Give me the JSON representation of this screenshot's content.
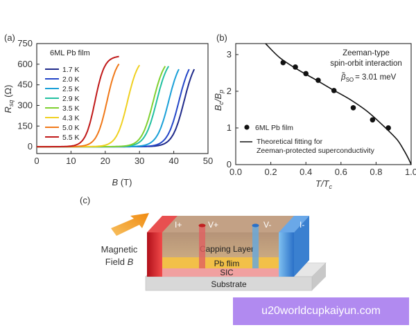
{
  "chart_data": [
    {
      "panel": "(a)",
      "type": "line",
      "title": "6ML Pb film",
      "xlabel": "B (T)",
      "ylabel": "R_sq (Ω)",
      "xlim": [
        0,
        50
      ],
      "ylim": [
        0,
        750
      ],
      "xticks": [
        "0",
        "10",
        "20",
        "30",
        "40",
        "50"
      ],
      "yticks": [
        "0",
        "150",
        "300",
        "450",
        "600",
        "750"
      ],
      "x_tick_values": [
        0,
        10,
        20,
        30,
        40,
        50
      ],
      "y_tick_values": [
        0,
        150,
        300,
        450,
        600,
        750
      ],
      "r_max": 660,
      "series": [
        {
          "name": "1.7 K",
          "color": "#1f2a8a",
          "midpoint_T": 43.0,
          "width_T": 1.7,
          "end_T": 46.0
        },
        {
          "name": "2.0 K",
          "color": "#2346c8",
          "midpoint_T": 41.5,
          "width_T": 1.7,
          "end_T": 44.5
        },
        {
          "name": "2.5 K",
          "color": "#1aa0d8",
          "midpoint_T": 38.5,
          "width_T": 1.7,
          "end_T": 41.5
        },
        {
          "name": "2.9 K",
          "color": "#22c0a0",
          "midpoint_T": 35.0,
          "width_T": 1.7,
          "end_T": 38.5
        },
        {
          "name": "3.5 K",
          "color": "#7fd030",
          "midpoint_T": 34.0,
          "width_T": 1.7,
          "end_T": 37.5
        },
        {
          "name": "4.3 K",
          "color": "#f0d020",
          "midpoint_T": 26.5,
          "width_T": 1.6,
          "end_T": 30.0
        },
        {
          "name": "5.0 K",
          "color": "#f07818",
          "midpoint_T": 20.5,
          "width_T": 1.5,
          "end_T": 24.0
        },
        {
          "name": "5.5 K",
          "color": "#c01818",
          "midpoint_T": 17.0,
          "width_T": 1.4,
          "end_T": 24.0
        }
      ]
    },
    {
      "panel": "(b)",
      "type": "scatter",
      "xlabel": "T/Tc",
      "ylabel": "Bc/Bp",
      "xlim": [
        0.0,
        1.0
      ],
      "ylim": [
        0,
        3.3
      ],
      "xticks": [
        "0.0",
        "0.2",
        "0.4",
        "0.6",
        "0.8",
        "1.0"
      ],
      "yticks": [
        "0",
        "1",
        "2",
        "3"
      ],
      "x_tick_values": [
        0.0,
        0.2,
        0.4,
        0.6,
        0.8,
        1.0
      ],
      "y_tick_values": [
        0,
        1,
        2,
        3
      ],
      "annotation_lines": [
        "Zeeman-type",
        "spin-orbit interaction"
      ],
      "beta_label": "β̃",
      "beta_subscript": "SO",
      "beta_value": "= 3.01 meV",
      "legend_points": "6ML Pb film",
      "legend_line_1": "Theoretical fitting for",
      "legend_line_2": "Zeeman-protected superconductivity",
      "points": {
        "x": [
          0.27,
          0.34,
          0.4,
          0.47,
          0.56,
          0.67,
          0.78,
          0.87
        ],
        "y": [
          2.78,
          2.66,
          2.48,
          2.3,
          2.02,
          1.55,
          1.22,
          1.0
        ]
      },
      "fit_curve": {
        "x": [
          0.17,
          0.25,
          0.35,
          0.45,
          0.55,
          0.65,
          0.75,
          0.85,
          0.92,
          0.96,
          0.985,
          1.0
        ],
        "y": [
          3.3,
          2.92,
          2.6,
          2.33,
          2.05,
          1.78,
          1.45,
          1.02,
          0.68,
          0.38,
          0.16,
          0.0
        ]
      }
    }
  ],
  "panel_c": {
    "label": "(c)",
    "field_label_line1": "Magnetic",
    "field_label_line2": "Field ",
    "field_label_symbol": "B",
    "electrodes": [
      "I+",
      "V+",
      "V-",
      "I-"
    ],
    "layers": [
      "Capping Layer",
      "Pb  flim",
      "SIC",
      "Substrate"
    ]
  },
  "watermark": "u20worldcupkaiyun.com"
}
